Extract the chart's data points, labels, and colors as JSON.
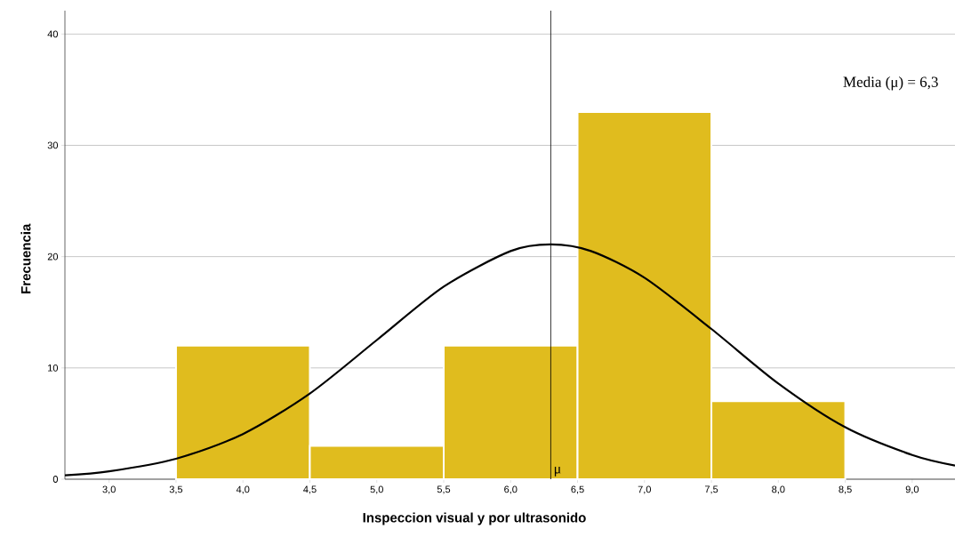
{
  "chart_data": {
    "type": "histogram",
    "xlabel": "Inspeccion visual y por ultrasonido",
    "ylabel": "Frecuencia",
    "annotations": [
      "Media (μ) = 6,3"
    ],
    "series": [
      {
        "color": "#e0bc1e",
        "bins": [
          3.5,
          4.5,
          5.5,
          6.5,
          7.5,
          8.5
        ],
        "values": [
          12,
          3,
          12,
          33,
          7
        ]
      },
      {
        "type": "line",
        "color": "#000000",
        "x": [
          2.67,
          3.0,
          3.5,
          4.0,
          4.5,
          5.0,
          5.5,
          6.0,
          6.3,
          6.6,
          7.0,
          7.5,
          8.0,
          8.5,
          9.0,
          9.32
        ],
        "values": [
          0.35,
          0.71,
          1.84,
          4.06,
          7.7,
          12.5,
          17.3,
          20.5,
          21.1,
          20.5,
          18.1,
          13.5,
          8.6,
          4.67,
          2.18,
          1.23
        ]
      }
    ],
    "ref_lines": [
      {
        "axis": "x",
        "value": 6.3,
        "label": "μ",
        "color": "#000000"
      }
    ],
    "xlim": [
      2.67,
      9.32
    ],
    "ylim": [
      0,
      42.1
    ],
    "xticks": [
      {
        "value": 3.0,
        "label": "3,0"
      },
      {
        "value": 3.5,
        "label": "3,5"
      },
      {
        "value": 4.0,
        "label": "4,0"
      },
      {
        "value": 4.5,
        "label": "4,5"
      },
      {
        "value": 5.0,
        "label": "5,0"
      },
      {
        "value": 5.5,
        "label": "5,5"
      },
      {
        "value": 6.0,
        "label": "6,0"
      },
      {
        "value": 6.5,
        "label": "6,5"
      },
      {
        "value": 7.0,
        "label": "7,0"
      },
      {
        "value": 7.5,
        "label": "7,5"
      },
      {
        "value": 8.0,
        "label": "8,0"
      },
      {
        "value": 8.5,
        "label": "8,5"
      },
      {
        "value": 9.0,
        "label": "9,0"
      }
    ],
    "yticks": [
      0,
      10,
      20,
      30,
      40
    ],
    "grid": "y"
  }
}
